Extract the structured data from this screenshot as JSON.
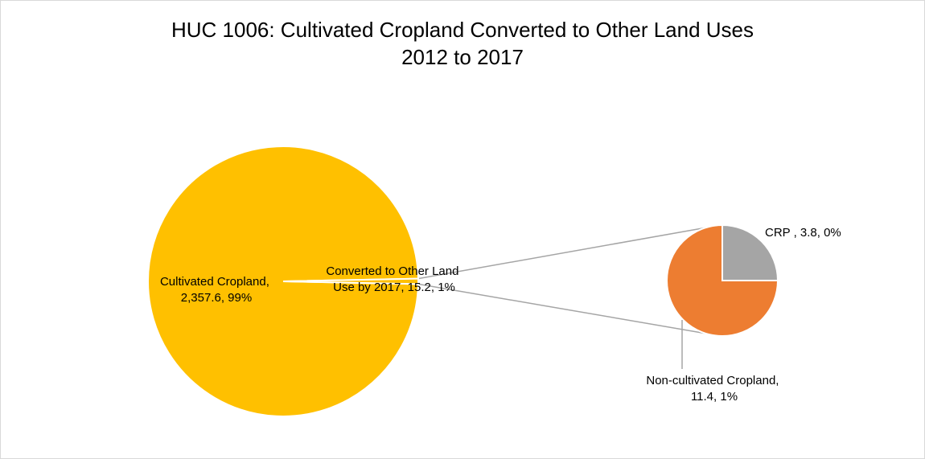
{
  "chart_data": {
    "type": "pie",
    "subtype": "pie-of-pie",
    "title_line1": "HUC 1006: Cultivated Cropland Converted to Other Land Uses",
    "title_line2": "2012 to 2017",
    "main_pie": {
      "slices": [
        {
          "label": "Cultivated Cropland,",
          "label_line2": "2,357.6, 99%",
          "value": 2357.6,
          "percent": "99%",
          "color": "#FFC000"
        },
        {
          "label": "Converted to Other Land",
          "label_line2": "Use by 2017, 15.2, 1%",
          "value": 15.2,
          "percent": "1%",
          "color": "#FFC000"
        }
      ]
    },
    "secondary_pie": {
      "slices": [
        {
          "label": "CRP , 3.8, 0%",
          "value": 3.8,
          "percent": "0%",
          "color": "#A5A5A5"
        },
        {
          "label": "Non-cultivated Cropland,",
          "label_line2": "11.4, 1%",
          "value": 11.4,
          "percent": "1%",
          "color": "#ED7D31"
        }
      ]
    },
    "connector_color": "#A5A5A5",
    "legend": "none"
  }
}
